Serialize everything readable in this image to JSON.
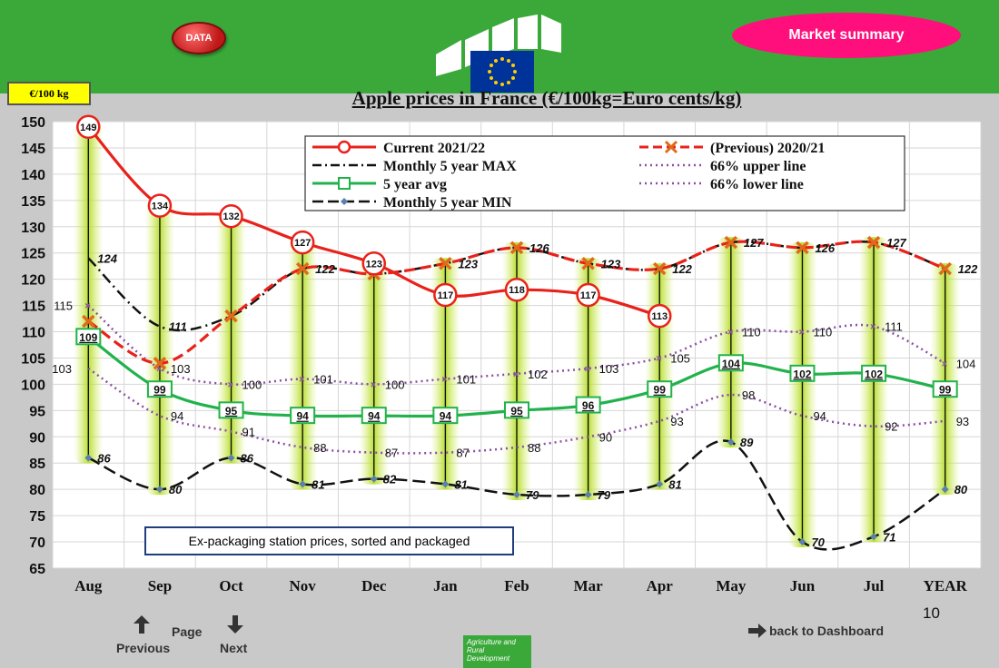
{
  "header": {
    "data_button": "DATA",
    "market_summary": "Market summary",
    "unit_badge": "€/100 kg",
    "colors": {
      "topbar": "#3aa93a",
      "data_button": "#d11f1f",
      "market_summary": "#ff0f7b",
      "unit_badge": "#ffff00"
    }
  },
  "footer": {
    "page_number": "10",
    "page_label": "Page",
    "previous_label": "Previous",
    "next_label": "Next",
    "back_label": "back to Dashboard",
    "logo_text": "Agriculture and Rural Development"
  },
  "chart_data": {
    "type": "line",
    "title": "Apple prices in France (€/100kg=Euro cents/kg)",
    "categories": [
      "Aug",
      "Sep",
      "Oct",
      "Nov",
      "Dec",
      "Jan",
      "Feb",
      "Mar",
      "Apr",
      "May",
      "Jun",
      "Jul",
      "YEAR"
    ],
    "ylim": [
      65,
      150
    ],
    "yticks": [
      65,
      70,
      75,
      80,
      85,
      90,
      95,
      100,
      105,
      110,
      115,
      120,
      125,
      130,
      135,
      140,
      145,
      150
    ],
    "grid": true,
    "legend_position": "top",
    "annotation": "Ex-packaging station prices, sorted and packaged",
    "series": [
      {
        "name": "Current 2021/22",
        "color": "#e8221b",
        "values": [
          149,
          134,
          132,
          127,
          123,
          117,
          118,
          117,
          113,
          null,
          null,
          null,
          null
        ]
      },
      {
        "name": "(Previous) 2020/21",
        "color": "#e8221b",
        "values": [
          112,
          104,
          113,
          122,
          121,
          123,
          126,
          123,
          122,
          127,
          126,
          127,
          122
        ]
      },
      {
        "name": "Monthly 5 year MAX",
        "color": "#111111",
        "values": [
          124,
          111,
          113,
          122,
          121,
          123,
          126,
          123,
          122,
          127,
          126,
          127,
          122
        ]
      },
      {
        "name": "66% upper line",
        "color": "#8a4fa5",
        "values": [
          115,
          103,
          100,
          101,
          100,
          101,
          102,
          103,
          105,
          110,
          110,
          111,
          104
        ]
      },
      {
        "name": "5 year avg",
        "color": "#22b24c",
        "values": [
          109,
          99,
          95,
          94,
          94,
          94,
          95,
          96,
          99,
          104,
          102,
          102,
          99
        ]
      },
      {
        "name": "66% lower line",
        "color": "#8a4fa5",
        "values": [
          103,
          94,
          91,
          88,
          87,
          87,
          88,
          90,
          93,
          98,
          94,
          92,
          93
        ]
      },
      {
        "name": "Monthly 5 year MIN",
        "color": "#111111",
        "values": [
          86,
          80,
          86,
          81,
          82,
          81,
          79,
          79,
          81,
          89,
          70,
          71,
          80
        ]
      }
    ]
  }
}
